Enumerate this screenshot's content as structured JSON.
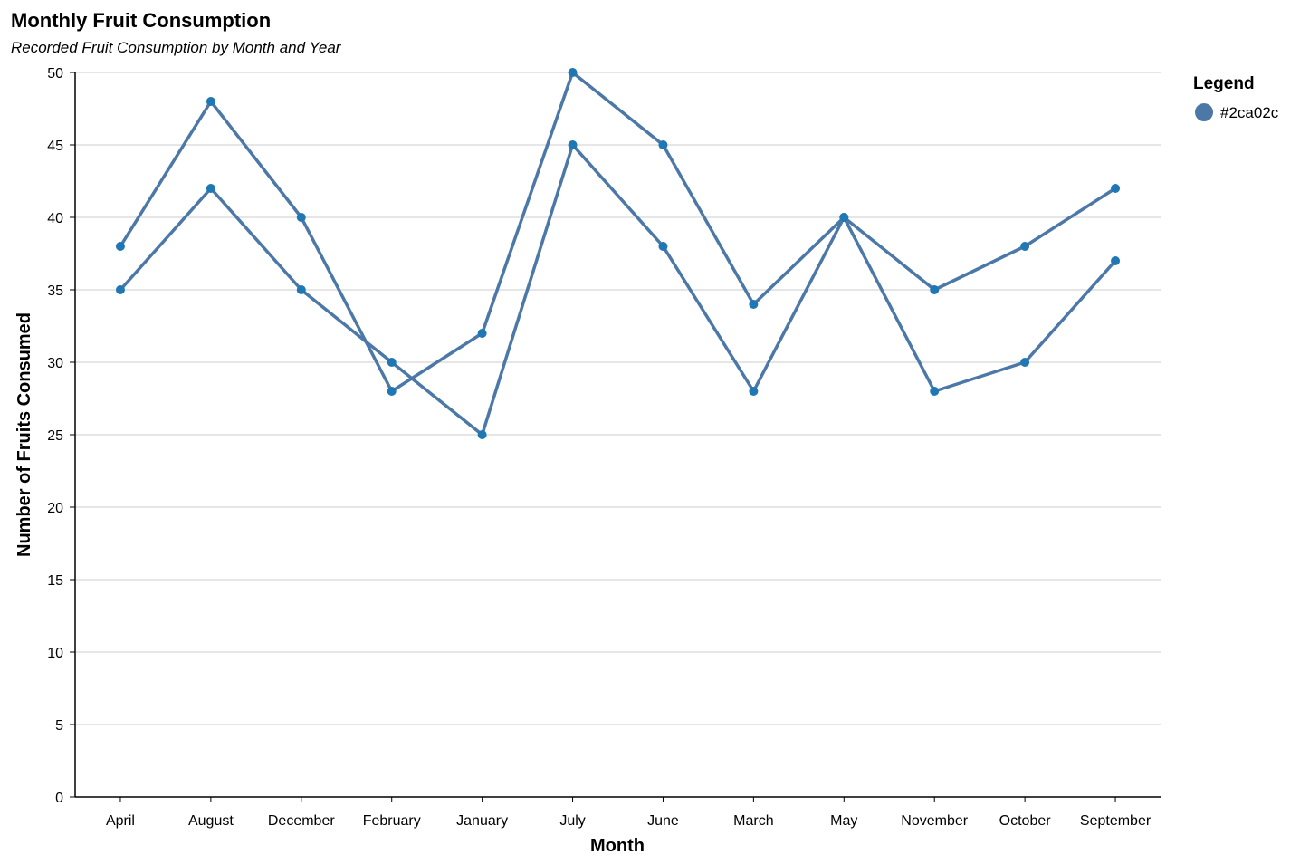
{
  "chart_data": {
    "type": "line",
    "title": "Monthly Fruit Consumption",
    "subtitle": "Recorded Fruit Consumption by Month and Year",
    "xlabel": "Month",
    "ylabel": "Number of Fruits Consumed",
    "categories": [
      "April",
      "August",
      "December",
      "February",
      "January",
      "July",
      "June",
      "March",
      "May",
      "November",
      "October",
      "September"
    ],
    "ylim": [
      0,
      50
    ],
    "yticks": [
      0,
      5,
      10,
      15,
      20,
      25,
      30,
      35,
      40,
      45,
      50
    ],
    "grid": true,
    "legend": {
      "title": "Legend",
      "placement": "top-right",
      "entries": [
        "#2ca02c"
      ]
    },
    "series": [
      {
        "values": [
          38,
          48,
          40,
          28,
          32,
          50,
          45,
          34,
          40,
          35,
          38,
          42
        ]
      },
      {
        "values": [
          35,
          42,
          35,
          30,
          25,
          45,
          38,
          28,
          40,
          28,
          30,
          37
        ]
      }
    ],
    "colors": {
      "line": "#4c78a8",
      "point": "#1f77b4",
      "grid": "#dddddd",
      "axis": "#000000"
    }
  }
}
